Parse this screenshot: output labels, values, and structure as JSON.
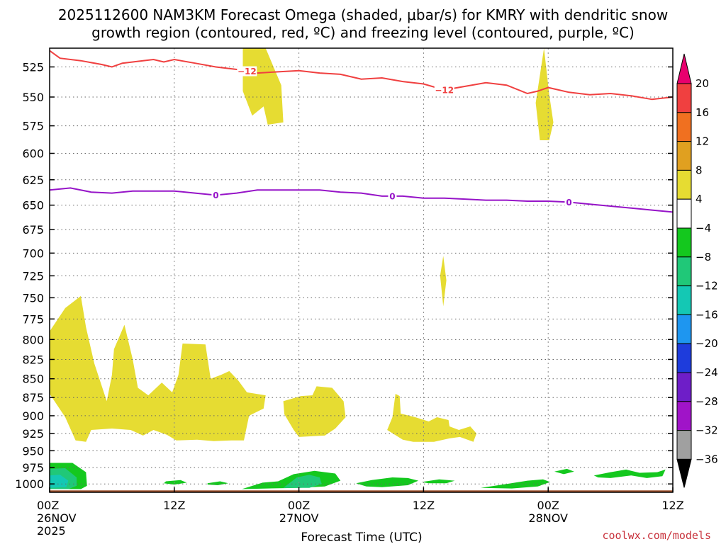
{
  "chart_data": {
    "type": "heatmap",
    "title_line1": "2025112600 NAM3KM Forecast Omega (shaded, μbar/s) for KMRY with dendritic snow",
    "title_line2": "growth region (contoured, red, ºC) and freezing level (contoured, purple, ºC)",
    "xlabel": "Forecast Time (UTC)",
    "credit": "coolwx.com/models",
    "y_axis": {
      "unit": "hPa",
      "range": [
        1013,
        510
      ],
      "scale": "log",
      "ticks": [
        525,
        550,
        575,
        600,
        625,
        650,
        675,
        700,
        725,
        750,
        775,
        800,
        825,
        850,
        875,
        900,
        925,
        950,
        975,
        1000
      ]
    },
    "x_axis": {
      "unit": "forecast hour",
      "range": [
        0,
        60
      ],
      "ticks": [
        {
          "hour": 0,
          "label": "00Z",
          "sub": "26NOV",
          "sub2": "2025"
        },
        {
          "hour": 12,
          "label": "12Z",
          "sub": "",
          "sub2": ""
        },
        {
          "hour": 24,
          "label": "00Z",
          "sub": "27NOV",
          "sub2": ""
        },
        {
          "hour": 36,
          "label": "12Z",
          "sub": "",
          "sub2": ""
        },
        {
          "hour": 48,
          "label": "00Z",
          "sub": "28NOV",
          "sub2": ""
        },
        {
          "hour": 60,
          "label": "12Z",
          "sub": "",
          "sub2": ""
        }
      ]
    },
    "grid": true,
    "colorbar": {
      "levels": [
        "20",
        "16",
        "12",
        "8",
        "4",
        "−4",
        "−8",
        "−12",
        "−16",
        "−20",
        "−24",
        "−28",
        "−32",
        "−36"
      ],
      "colors": [
        "#e8006e",
        "#f04040",
        "#f07020",
        "#e0a020",
        "#e6dc32",
        "#ffffff",
        "#14c81e",
        "#20c878",
        "#14c8b4",
        "#1e96f0",
        "#1e3cdc",
        "#6e1ec8",
        "#a014c8",
        "#a0a0a0",
        "#000000"
      ]
    },
    "series": [
      {
        "name": "-12 ºC contour",
        "color": "#f04040",
        "label": "−12",
        "label_hours": [
          19,
          38
        ],
        "points": [
          [
            0,
            512
          ],
          [
            1,
            518
          ],
          [
            3,
            520
          ],
          [
            5,
            523
          ],
          [
            6,
            525
          ],
          [
            7,
            522
          ],
          [
            9,
            520
          ],
          [
            10,
            519
          ],
          [
            11,
            521
          ],
          [
            12,
            519
          ],
          [
            14,
            522
          ],
          [
            16,
            525
          ],
          [
            18,
            527
          ],
          [
            20,
            530
          ],
          [
            22,
            529
          ],
          [
            24,
            528
          ],
          [
            26,
            530
          ],
          [
            28,
            531
          ],
          [
            30,
            535
          ],
          [
            32,
            534
          ],
          [
            34,
            537
          ],
          [
            36,
            539
          ],
          [
            38,
            544
          ],
          [
            40,
            541
          ],
          [
            42,
            538
          ],
          [
            44,
            540
          ],
          [
            46,
            547
          ],
          [
            47,
            545
          ],
          [
            48,
            542
          ],
          [
            50,
            546
          ],
          [
            52,
            548
          ],
          [
            54,
            547
          ],
          [
            56,
            549
          ],
          [
            58,
            552
          ],
          [
            60,
            550
          ]
        ]
      },
      {
        "name": "0 ºC contour",
        "color": "#9614c8",
        "label": "0",
        "label_hours": [
          16,
          33,
          50
        ],
        "points": [
          [
            0,
            635
          ],
          [
            2,
            633
          ],
          [
            4,
            637
          ],
          [
            6,
            638
          ],
          [
            8,
            636
          ],
          [
            10,
            636
          ],
          [
            12,
            636
          ],
          [
            14,
            638
          ],
          [
            16,
            640
          ],
          [
            18,
            638
          ],
          [
            20,
            635
          ],
          [
            22,
            635
          ],
          [
            24,
            635
          ],
          [
            26,
            635
          ],
          [
            28,
            637
          ],
          [
            30,
            638
          ],
          [
            32,
            641
          ],
          [
            34,
            641
          ],
          [
            36,
            643
          ],
          [
            38,
            643
          ],
          [
            40,
            644
          ],
          [
            42,
            645
          ],
          [
            44,
            645
          ],
          [
            46,
            646
          ],
          [
            48,
            646
          ],
          [
            50,
            647
          ],
          [
            52,
            649
          ],
          [
            54,
            651
          ],
          [
            56,
            653
          ],
          [
            58,
            655
          ],
          [
            60,
            657
          ]
        ]
      }
    ],
    "shaded_regions": [
      {
        "value_range": [
          4,
          8
        ],
        "color": "#e6dc32",
        "points": [
          [
            18.6,
            510
          ],
          [
            20.8,
            510
          ],
          [
            22.3,
            540
          ],
          [
            22.5,
            572
          ],
          [
            21,
            574
          ],
          [
            20.6,
            558
          ],
          [
            19.5,
            566
          ],
          [
            18.6,
            545
          ]
        ]
      },
      {
        "value_range": [
          4,
          8
        ],
        "color": "#e6dc32",
        "points": [
          [
            46.8,
            555
          ],
          [
            47.6,
            510
          ],
          [
            48.1,
            548
          ],
          [
            48.5,
            572
          ],
          [
            48.1,
            588
          ],
          [
            47.2,
            588
          ]
        ]
      },
      {
        "value_range": [
          4,
          8
        ],
        "color": "#e6dc32",
        "points": [
          [
            37.6,
            725
          ],
          [
            37.9,
            703
          ],
          [
            38.2,
            730
          ],
          [
            37.9,
            760
          ]
        ]
      },
      {
        "value_range": [
          4,
          8
        ],
        "color": "#e6dc32",
        "points": [
          [
            0,
            790
          ],
          [
            1.5,
            762
          ],
          [
            3,
            748
          ],
          [
            3.5,
            785
          ],
          [
            4.3,
            830
          ],
          [
            5.5,
            880
          ],
          [
            6,
            845
          ],
          [
            6.2,
            812
          ],
          [
            7.2,
            782
          ],
          [
            8,
            825
          ],
          [
            8.5,
            862
          ],
          [
            9.5,
            872
          ],
          [
            10.8,
            855
          ],
          [
            11.8,
            868
          ],
          [
            12.4,
            845
          ],
          [
            12.8,
            805
          ],
          [
            15,
            806
          ],
          [
            15.5,
            850
          ],
          [
            16.5,
            845
          ],
          [
            17.3,
            840
          ],
          [
            18.2,
            853
          ],
          [
            19,
            868
          ],
          [
            20.8,
            872
          ],
          [
            20.6,
            890
          ],
          [
            19.2,
            900
          ],
          [
            18.7,
            935
          ],
          [
            17.5,
            935
          ],
          [
            15.8,
            936
          ],
          [
            14.2,
            934
          ],
          [
            12.2,
            935
          ],
          [
            11.3,
            927
          ],
          [
            10,
            920
          ],
          [
            9,
            928
          ],
          [
            7.8,
            920
          ],
          [
            6,
            918
          ],
          [
            4,
            920
          ],
          [
            3.5,
            937
          ],
          [
            2.5,
            935
          ],
          [
            1.5,
            902
          ],
          [
            0,
            870
          ]
        ]
      },
      {
        "value_range": [
          4,
          8
        ],
        "color": "#e6dc32",
        "points": [
          [
            22.5,
            880
          ],
          [
            24.2,
            873
          ],
          [
            25.3,
            872
          ],
          [
            25.7,
            860
          ],
          [
            27.2,
            862
          ],
          [
            28.3,
            880
          ],
          [
            28.5,
            902
          ],
          [
            27.5,
            918
          ],
          [
            26.5,
            928
          ],
          [
            24,
            930
          ],
          [
            23.5,
            920
          ],
          [
            22.6,
            898
          ]
        ]
      },
      {
        "value_range": [
          4,
          8
        ],
        "color": "#e6dc32",
        "points": [
          [
            32.5,
            920
          ],
          [
            33,
            902
          ],
          [
            33.3,
            870
          ],
          [
            33.7,
            873
          ],
          [
            33.8,
            897
          ],
          [
            35.2,
            902
          ],
          [
            36.5,
            908
          ],
          [
            37.3,
            902
          ],
          [
            38.4,
            906
          ],
          [
            38.5,
            915
          ],
          [
            39.4,
            920
          ],
          [
            40.5,
            915
          ],
          [
            41.1,
            925
          ],
          [
            40.8,
            937
          ],
          [
            39.5,
            930
          ],
          [
            38.5,
            932
          ],
          [
            37,
            937
          ],
          [
            35,
            937
          ],
          [
            34,
            934
          ]
        ]
      },
      {
        "value_range": [
          -8,
          -4
        ],
        "color": "#14c81e",
        "points": [
          [
            0,
            968
          ],
          [
            2.2,
            968
          ],
          [
            3.5,
            982
          ],
          [
            3.6,
            1003
          ],
          [
            3,
            1008
          ],
          [
            0,
            1008
          ]
        ]
      },
      {
        "value_range": [
          -12,
          -8
        ],
        "color": "#20c878",
        "points": [
          [
            0,
            977
          ],
          [
            1.5,
            976
          ],
          [
            2.6,
            990
          ],
          [
            2.6,
            1003
          ],
          [
            1.8,
            1008
          ],
          [
            0,
            1008
          ]
        ]
      },
      {
        "value_range": [
          -16,
          -12
        ],
        "color": "#14c8b4",
        "points": [
          [
            0,
            987
          ],
          [
            1,
            986
          ],
          [
            1.8,
            995
          ],
          [
            1.6,
            1005
          ],
          [
            0,
            1006
          ]
        ]
      },
      {
        "value_range": [
          -8,
          -4
        ],
        "color": "#14c81e",
        "points": [
          [
            11.2,
            996
          ],
          [
            12.6,
            994
          ],
          [
            13.2,
            998
          ],
          [
            12,
            1001
          ],
          [
            11,
            999
          ]
        ]
      },
      {
        "value_range": [
          -8,
          -4
        ],
        "color": "#14c81e",
        "points": [
          [
            15.2,
            999
          ],
          [
            16.4,
            996
          ],
          [
            17.2,
            999
          ],
          [
            16.2,
            1002
          ],
          [
            15.2,
            1001
          ]
        ]
      },
      {
        "value_range": [
          -8,
          -4
        ],
        "color": "#14c81e",
        "points": [
          [
            18.5,
            1008
          ],
          [
            20.5,
            998
          ],
          [
            22,
            996
          ],
          [
            23.5,
            985
          ],
          [
            25.5,
            980
          ],
          [
            27.5,
            984
          ],
          [
            28,
            995
          ],
          [
            26.5,
            1004
          ],
          [
            24,
            1006
          ],
          [
            21,
            1007
          ]
        ]
      },
      {
        "value_range": [
          -12,
          -8
        ],
        "color": "#20c878",
        "points": [
          [
            22.5,
            1006
          ],
          [
            23.8,
            990
          ],
          [
            25,
            986
          ],
          [
            26,
            990
          ],
          [
            26.2,
            1000
          ],
          [
            25,
            1006
          ]
        ]
      },
      {
        "value_range": [
          -8,
          -4
        ],
        "color": "#14c81e",
        "points": [
          [
            29.5,
            999
          ],
          [
            31,
            994
          ],
          [
            33,
            990
          ],
          [
            34.5,
            991
          ],
          [
            35.5,
            995
          ],
          [
            34.5,
            1002
          ],
          [
            32,
            1005
          ],
          [
            30.5,
            1004
          ]
        ]
      },
      {
        "value_range": [
          -8,
          -4
        ],
        "color": "#14c81e",
        "points": [
          [
            35.8,
            997
          ],
          [
            37.5,
            993
          ],
          [
            39,
            995
          ],
          [
            38.2,
            999
          ],
          [
            36.5,
            999
          ]
        ]
      },
      {
        "value_range": [
          -8,
          -4
        ],
        "color": "#14c81e",
        "points": [
          [
            41.5,
            1006
          ],
          [
            44,
            1000
          ],
          [
            46,
            995
          ],
          [
            47.5,
            993
          ],
          [
            48.2,
            997
          ],
          [
            47,
            1004
          ],
          [
            44.5,
            1007
          ]
        ]
      },
      {
        "value_range": [
          -8,
          -4
        ],
        "color": "#14c81e",
        "points": [
          [
            48.6,
            981
          ],
          [
            49.8,
            977
          ],
          [
            50.5,
            981
          ],
          [
            49.5,
            985
          ]
        ]
      },
      {
        "value_range": [
          -8,
          -4
        ],
        "color": "#14c81e",
        "points": [
          [
            52.4,
            987
          ],
          [
            54,
            982
          ],
          [
            55.5,
            978
          ],
          [
            56.8,
            983
          ],
          [
            58.5,
            982
          ],
          [
            59.3,
            978
          ],
          [
            59,
            988
          ],
          [
            57.5,
            991
          ],
          [
            56,
            987
          ],
          [
            54,
            991
          ],
          [
            52.8,
            990
          ]
        ]
      }
    ],
    "terrain": {
      "color": "#a0522d",
      "surface_hpa": 1010
    }
  }
}
